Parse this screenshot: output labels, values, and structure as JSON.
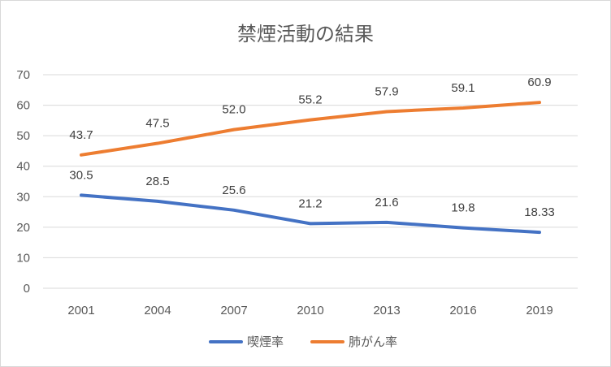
{
  "chart_data": {
    "type": "line",
    "title": "禁煙活動の結果",
    "xlabel": "",
    "ylabel": "",
    "categories": [
      "2001",
      "2004",
      "2007",
      "2010",
      "2013",
      "2016",
      "2019"
    ],
    "y_ticks": [
      "0",
      "10",
      "20",
      "30",
      "40",
      "50",
      "60",
      "70"
    ],
    "ylim": [
      0,
      70
    ],
    "grid": "horizontal",
    "legend_position": "bottom",
    "series": [
      {
        "name": "喫煙率",
        "color": "#4472c4",
        "values": [
          30.5,
          28.5,
          25.6,
          21.2,
          21.6,
          19.8,
          18.33
        ],
        "labels": [
          "30.5",
          "28.5",
          "25.6",
          "21.2",
          "21.6",
          "19.8",
          "18.33"
        ]
      },
      {
        "name": "肺がん率",
        "color": "#ed7d31",
        "values": [
          43.7,
          47.5,
          52.0,
          55.2,
          57.9,
          59.1,
          60.9
        ],
        "labels": [
          "43.7",
          "47.5",
          "52.0",
          "55.2",
          "57.9",
          "59.1",
          "60.9"
        ]
      }
    ]
  }
}
